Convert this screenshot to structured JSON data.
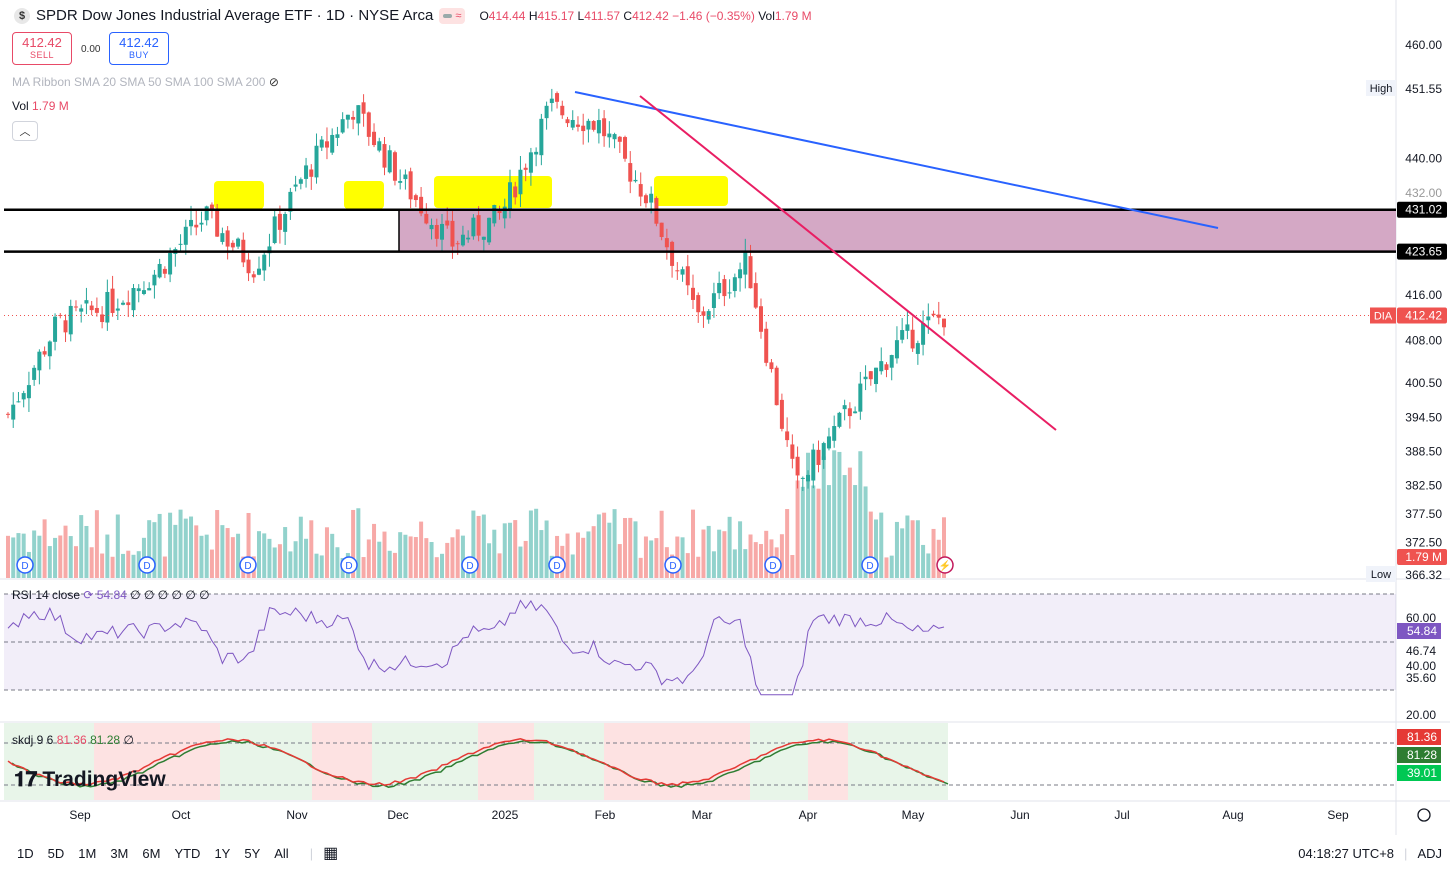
{
  "header": {
    "symbol_icon": "$",
    "title": "SPDR Dow Jones Industrial Average ETF · 1D · NYSE Arca",
    "ohlc": {
      "o_label": "O",
      "o": "414.44",
      "h_label": "H",
      "h": "415.17",
      "l_label": "L",
      "l": "411.57",
      "c_label": "C",
      "c": "412.42",
      "change": "−1.46 (−0.35%)",
      "vol_label": "Vol",
      "vol": "1.79 M"
    }
  },
  "trade": {
    "sell_price": "412.42",
    "sell_label": "SELL",
    "spread": "0.00",
    "buy_price": "412.42",
    "buy_label": "BUY"
  },
  "legend": {
    "ma_ribbon": "MA Ribbon SMA 20 SMA 50 SMA 100 SMA 200",
    "vol_label": "Vol",
    "vol_value": "1.79 M"
  },
  "rsi_legend": {
    "name": "RSI 14 close",
    "value": "54.84",
    "extra": "∅ ∅ ∅ ∅ ∅ ∅"
  },
  "skdj_legend": {
    "name": "skdj 9 6",
    "k": "81.36",
    "d": "81.28",
    "extra": "∅"
  },
  "price_axis": {
    "ticks": [
      "460.00",
      "451.55",
      "440.00",
      "431.02",
      "423.65",
      "416.00",
      "412.42",
      "408.00",
      "400.50",
      "394.50",
      "388.50",
      "382.50",
      "377.50",
      "372.50",
      "1.79 M",
      "366.32"
    ],
    "high_label": "High",
    "high_value": "451.55",
    "low_label": "Low",
    "low_value": "366.32",
    "level_upper": "431.02",
    "level_lower": "423.65",
    "current_symbol": "DIA",
    "current_value": "412.42",
    "vol_value": "1.79 M"
  },
  "rsi_axis": {
    "ticks": [
      "60.00",
      "46.74",
      "40.00",
      "35.60",
      "20.00"
    ],
    "current": "54.84"
  },
  "skdj_axis": {
    "k": "81.36",
    "d": "81.28",
    "lower": "39.01"
  },
  "time_axis": [
    "Sep",
    "Oct",
    "Nov",
    "Dec",
    "2025",
    "Feb",
    "Mar",
    "Apr",
    "May",
    "Jun",
    "Jul",
    "Aug",
    "Sep"
  ],
  "toolbar": {
    "ranges": [
      "1D",
      "5D",
      "1M",
      "3M",
      "6M",
      "YTD",
      "1Y",
      "5Y",
      "All"
    ],
    "time": "04:18:27 UTC+8",
    "adj": "ADJ"
  },
  "branding": "TradingView",
  "colors": {
    "up": "#26a69a",
    "down": "#ef5350",
    "zone": "#cc99bb",
    "highlight": "#ffff00",
    "trend_blue": "#2962ff",
    "trend_pink": "#e91e63",
    "rsi": "#7e57c2"
  },
  "chart_data": {
    "type": "candlestick",
    "price_range": [
      366.32,
      461
    ],
    "levels": [
      431.02,
      423.65
    ],
    "high": 451.55,
    "low": 366.32,
    "last": 412.42,
    "closes": [
      {
        "date": "2024-08",
        "close": 395
      },
      {
        "date": "2024-09-01",
        "close": 411
      },
      {
        "date": "2024-09-15",
        "close": 414
      },
      {
        "date": "2024-10-01",
        "close": 420
      },
      {
        "date": "2024-10-15",
        "close": 430
      },
      {
        "date": "2024-11-01",
        "close": 421
      },
      {
        "date": "2024-11-15",
        "close": 437
      },
      {
        "date": "2024-12-01",
        "close": 449
      },
      {
        "date": "2024-12-15",
        "close": 436
      },
      {
        "date": "2025-01-01",
        "close": 425
      },
      {
        "date": "2025-01-15",
        "close": 430
      },
      {
        "date": "2025-02-01",
        "close": 449
      },
      {
        "date": "2025-02-15",
        "close": 446
      },
      {
        "date": "2025-03-01",
        "close": 433
      },
      {
        "date": "2025-03-15",
        "close": 412
      },
      {
        "date": "2025-04-01",
        "close": 422
      },
      {
        "date": "2025-04-10",
        "close": 382
      },
      {
        "date": "2025-04-20",
        "close": 395
      },
      {
        "date": "2025-05-01",
        "close": 407
      },
      {
        "date": "2025-05-08",
        "close": 412.42
      }
    ],
    "rsi_last": 54.84,
    "skdj": {
      "k": 81.36,
      "d": 81.28
    }
  }
}
